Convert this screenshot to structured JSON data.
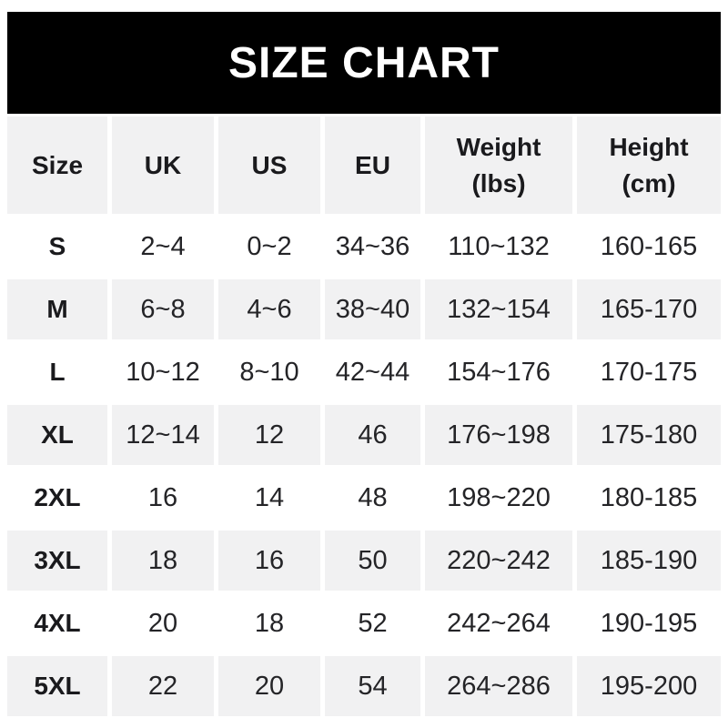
{
  "banner": {
    "title": "SIZE CHART"
  },
  "colors": {
    "banner_bg": "#000000",
    "banner_text": "#ffffff",
    "alt_row_bg": "#f1f1f2",
    "row_bg": "#ffffff",
    "text": "#1e1e20"
  },
  "chart_data": {
    "type": "table",
    "title": "SIZE CHART",
    "columns": [
      "Size",
      "UK",
      "US",
      "EU",
      "Weight (lbs)",
      "Height (cm)"
    ],
    "rows": [
      [
        "S",
        "2~4",
        "0~2",
        "34~36",
        "110~132",
        "160-165"
      ],
      [
        "M",
        "6~8",
        "4~6",
        "38~40",
        "132~154",
        "165-170"
      ],
      [
        "L",
        "10~12",
        "8~10",
        "42~44",
        "154~176",
        "170-175"
      ],
      [
        "XL",
        "12~14",
        "12",
        "46",
        "176~198",
        "175-180"
      ],
      [
        "2XL",
        "16",
        "14",
        "48",
        "198~220",
        "180-185"
      ],
      [
        "3XL",
        "18",
        "16",
        "50",
        "220~242",
        "185-190"
      ],
      [
        "4XL",
        "20",
        "18",
        "52",
        "242~264",
        "190-195"
      ],
      [
        "5XL",
        "22",
        "20",
        "54",
        "264~286",
        "195-200"
      ]
    ]
  }
}
